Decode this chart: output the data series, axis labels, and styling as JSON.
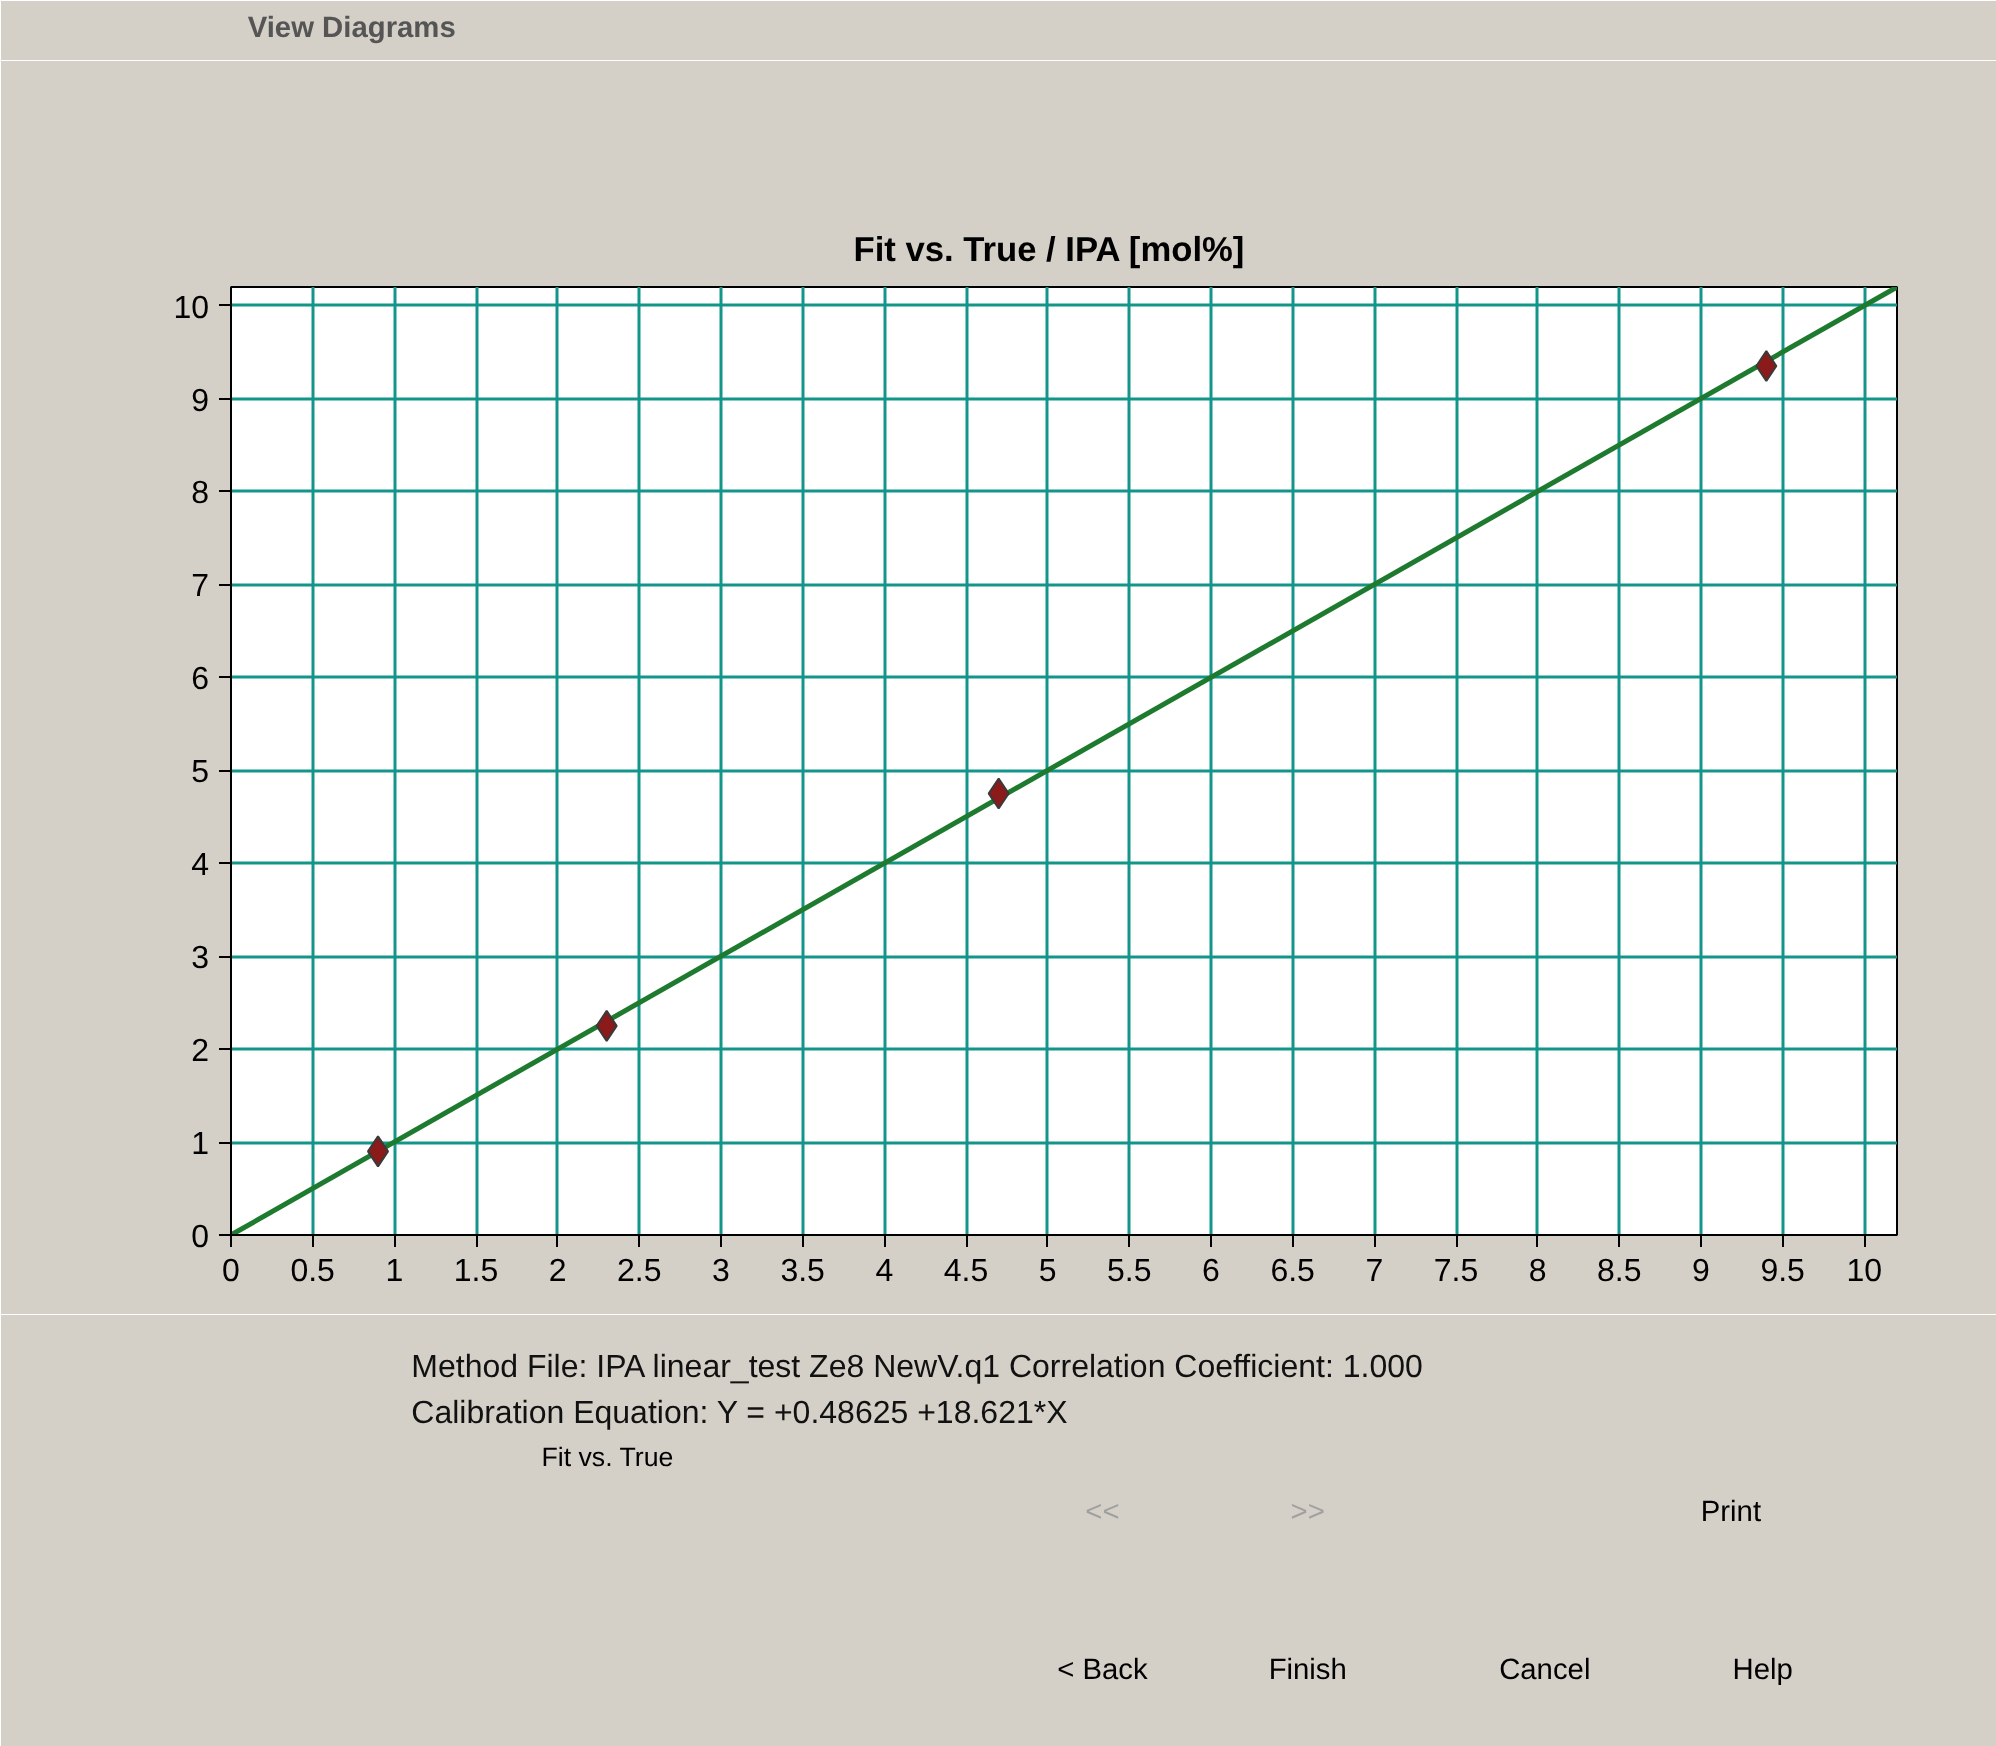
{
  "chart_data": {
    "type": "scatter",
    "title": "Fit vs. True  /  IPA  [mol%]",
    "xlim": [
      0,
      10.2
    ],
    "ylim": [
      0,
      10.2
    ],
    "xticks": [
      0,
      0.5,
      1,
      1.5,
      2,
      2.5,
      3,
      3.5,
      4,
      4.5,
      5,
      5.5,
      6,
      6.5,
      7,
      7.5,
      8,
      8.5,
      9,
      9.5,
      10
    ],
    "yticks": [
      0,
      1,
      2,
      3,
      4,
      5,
      6,
      7,
      8,
      9,
      10
    ],
    "grid": true,
    "series": [
      {
        "type": "scatter",
        "color": "#8b1a1a",
        "marker": "diamond",
        "x": [
          0.9,
          2.3,
          4.7,
          9.4
        ],
        "values": [
          0.9,
          2.25,
          4.75,
          9.35
        ]
      },
      {
        "type": "line",
        "color": "#1e7a2e",
        "line_style": "solid",
        "x": [
          0,
          10.2
        ],
        "values": [
          0,
          10.2
        ]
      }
    ],
    "annotations": [
      "View Diagrams",
      "Method File:  IPA linear_test Ze8 NewV.q1    Correlation Coefficient:  1.000",
      "Calibration Equation:     Y = +0.48625 +18.621*X",
      "Fit vs. True",
      "<<",
      ">>",
      "Print",
      "< Back",
      "Finish",
      "Cancel",
      "Help"
    ]
  }
}
